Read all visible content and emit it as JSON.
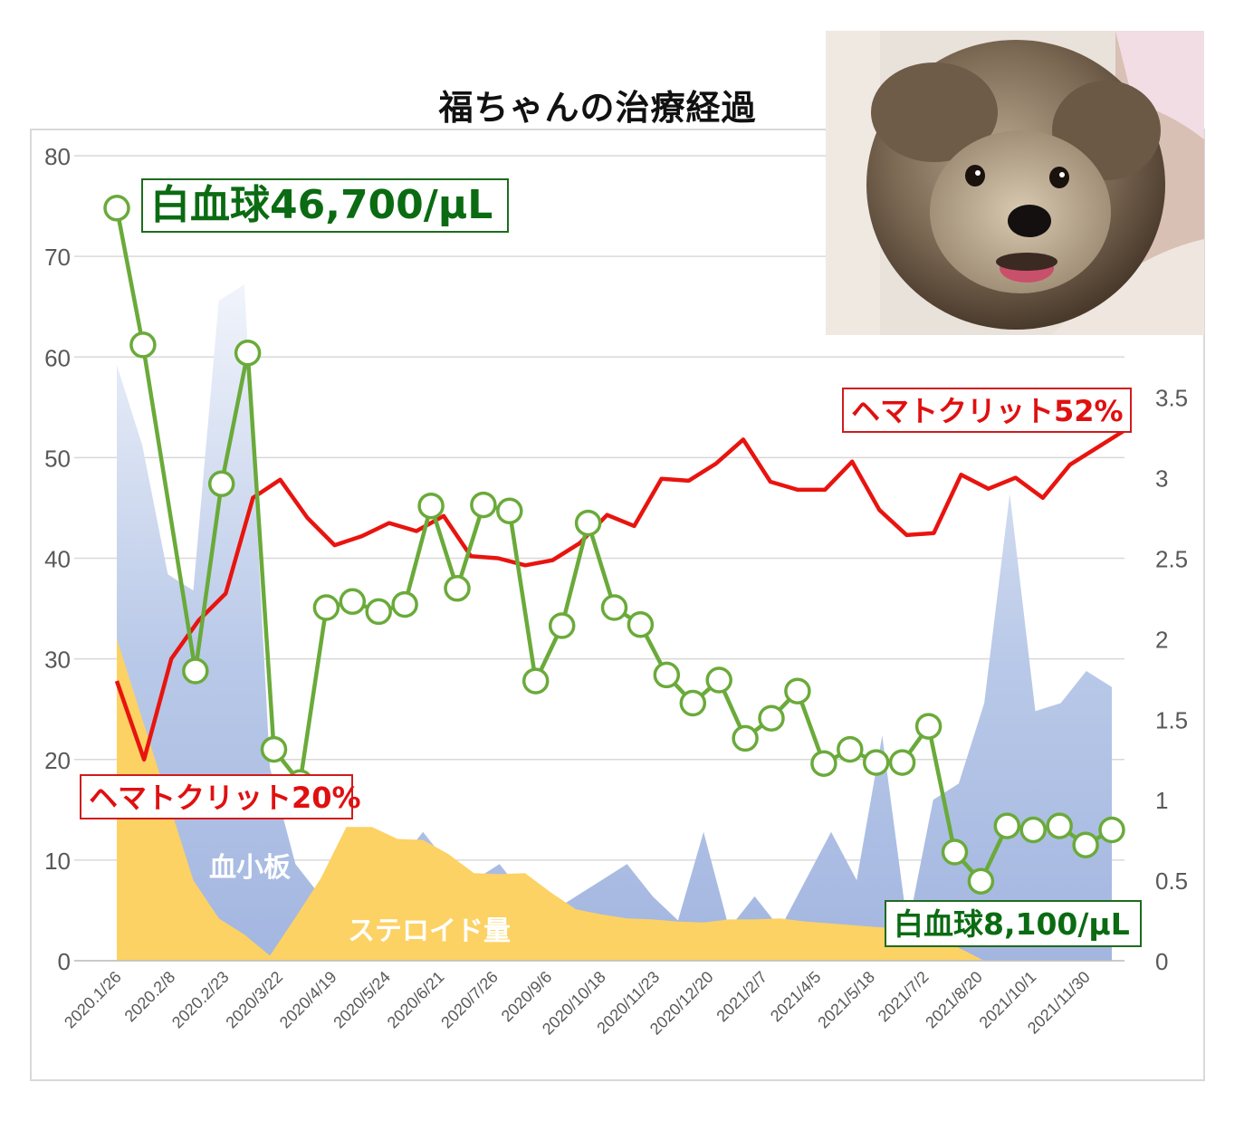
{
  "chart_data": {
    "type": "line",
    "title": "福ちゃんの治療経過",
    "x_tick_labels": [
      "2020.1/26",
      "2020.2/8",
      "2020.2/23",
      "2020/3/22",
      "2020/4/19",
      "2020/5/24",
      "2020/6/21",
      "2020/7/26",
      "2020/9/6",
      "2020/10/18",
      "2020/11/23",
      "2020/12/20",
      "2021/2/7",
      "2021/4/5",
      "2021/5/18",
      "2021/7/2",
      "2021/8/20",
      "2021/10/1",
      "2021/11/30"
    ],
    "y_left": {
      "ticks": [
        "0",
        "10",
        "20",
        "30",
        "40",
        "50",
        "60",
        "70",
        "80"
      ],
      "ylim": [
        0,
        80
      ]
    },
    "y_right": {
      "ticks": [
        "0",
        "0.5",
        "1",
        "1.5",
        "2",
        "2.5",
        "3",
        "3.5"
      ],
      "ylim": [
        0,
        5
      ]
    },
    "series": [
      {
        "name": "ヘマトクリット",
        "kind": "line",
        "axis": "left",
        "color": "#e8140f",
        "values": [
          27.8,
          20,
          30,
          33.8,
          36.5,
          46,
          47.8,
          44,
          41.3,
          42.2,
          43.5,
          42.7,
          44.2,
          40.2,
          40,
          39.3,
          39.8,
          41.5,
          44.3,
          43.2,
          47.9,
          47.7,
          49.4,
          51.8,
          47.6,
          46.8,
          46.8,
          49.6,
          44.8,
          42.3,
          42.5,
          48.3,
          46.9,
          48,
          46,
          49.3,
          51,
          52.7
        ]
      },
      {
        "name": "白血球",
        "kind": "line-marker",
        "axis": "left",
        "color": "#6aaa3a",
        "values": [
          74.8,
          61.2,
          null,
          28.8,
          47.4,
          60.4,
          21,
          17.7,
          35.1,
          35.7,
          34.7,
          35.4,
          45.2,
          37,
          45.3,
          44.7,
          27.8,
          33.3,
          43.5,
          35.1,
          33.4,
          28.4,
          25.6,
          27.9,
          22.1,
          24.1,
          26.8,
          19.6,
          21,
          19.7,
          19.7,
          23.3,
          10.8,
          7.9,
          13.4,
          13,
          13.4,
          11.5,
          13
        ]
      },
      {
        "name": "血小板",
        "kind": "area",
        "axis": "right",
        "color": "#a9bde3",
        "values": [
          3.7,
          3.2,
          2.4,
          2.3,
          4.1,
          4.2,
          1.2,
          0.6,
          0.4,
          0.3,
          0.4,
          0.6,
          0.8,
          0.6,
          0.5,
          0.6,
          0.4,
          0.3,
          0.4,
          0.5,
          0.6,
          0.4,
          0.25,
          0.8,
          0.2,
          0.4,
          0.2,
          0.5,
          0.8,
          0.5,
          1.4,
          0.2,
          1.0,
          1.1,
          1.6,
          2.9,
          1.55,
          1.6,
          1.8,
          1.7
        ]
      },
      {
        "name": "ステロイド量",
        "kind": "area",
        "axis": "left",
        "color": "#fcd264",
        "values": [
          32,
          24,
          16,
          8,
          4.2,
          2.6,
          0.5,
          4.3,
          8.2,
          13.3,
          13.3,
          12.1,
          12,
          10.6,
          8.7,
          8.6,
          8.7,
          6.8,
          5.1,
          4.6,
          4.2,
          4.1,
          3.9,
          3.8,
          4.1,
          4.1,
          4.2,
          3.9,
          3.7,
          3.5,
          3.3,
          3.2,
          2.6,
          1.3,
          0,
          0,
          0,
          0,
          0,
          0
        ]
      }
    ],
    "annotations": {
      "wbc_start": "白血球46,700/μL",
      "wbc_end": "白血球8,100/μL",
      "hct_start": "ヘマトクリット20%",
      "hct_end": "ヘマトクリット52%",
      "platelet_label": "血小板",
      "steroid_label": "ステロイド量"
    },
    "grid": true,
    "legend": "none",
    "photo": "dog-photo"
  }
}
